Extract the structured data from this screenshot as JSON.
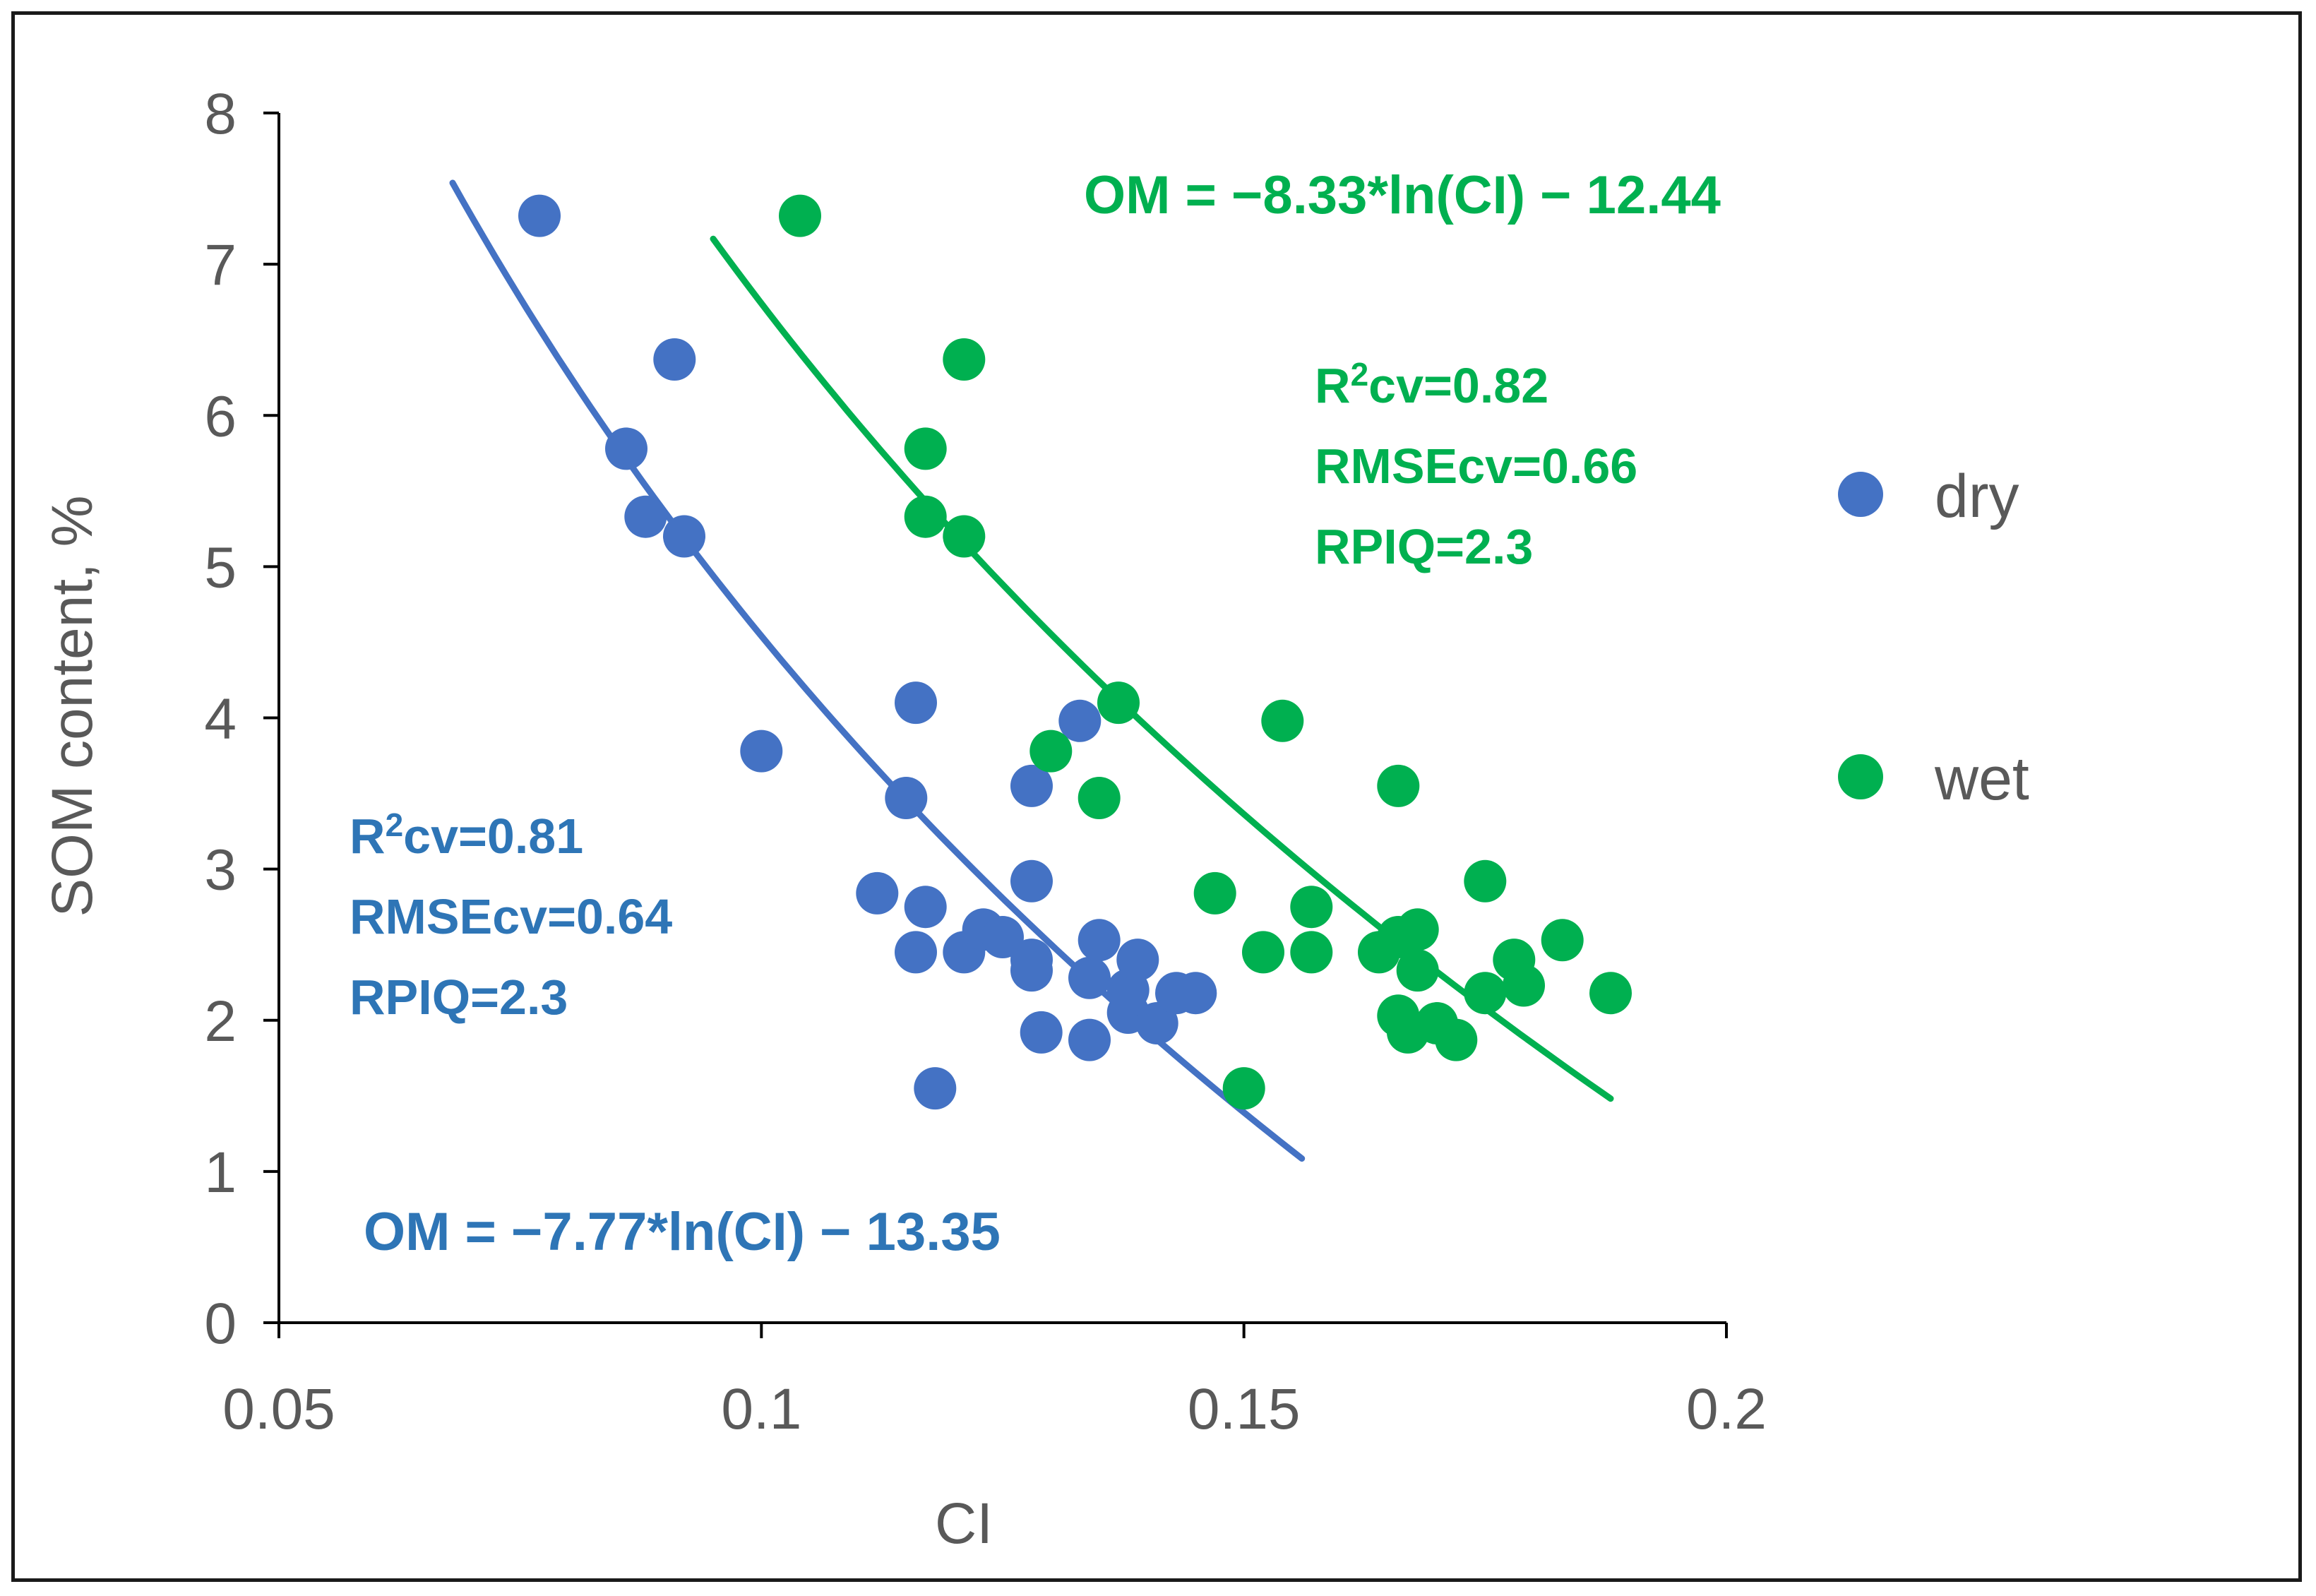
{
  "chart_data": {
    "type": "scatter",
    "title": "",
    "xlabel": "CI",
    "ylabel": "SOM  content, %",
    "xlim": [
      0.05,
      0.2
    ],
    "ylim": [
      0,
      8
    ],
    "xticks": [
      "0.05",
      "0.1",
      "0.15",
      "0.2"
    ],
    "yticks": [
      "0",
      "1",
      "2",
      "3",
      "4",
      "5",
      "6",
      "7",
      "8"
    ],
    "legend": {
      "placement": "right",
      "entries": [
        "dry",
        "wet"
      ]
    },
    "series": [
      {
        "name": "dry",
        "color": "#4472c4",
        "points": [
          [
            0.077,
            7.32
          ],
          [
            0.091,
            6.37
          ],
          [
            0.086,
            5.78
          ],
          [
            0.088,
            5.33
          ],
          [
            0.092,
            5.2
          ],
          [
            0.1,
            3.78
          ],
          [
            0.116,
            4.1
          ],
          [
            0.133,
            3.98
          ],
          [
            0.115,
            3.47
          ],
          [
            0.128,
            3.55
          ],
          [
            0.112,
            2.84
          ],
          [
            0.117,
            2.75
          ],
          [
            0.128,
            2.92
          ],
          [
            0.116,
            2.45
          ],
          [
            0.121,
            2.45
          ],
          [
            0.123,
            2.6
          ],
          [
            0.125,
            2.55
          ],
          [
            0.128,
            2.4
          ],
          [
            0.128,
            2.33
          ],
          [
            0.129,
            1.92
          ],
          [
            0.134,
            1.87
          ],
          [
            0.134,
            2.28
          ],
          [
            0.135,
            2.53
          ],
          [
            0.138,
            2.05
          ],
          [
            0.138,
            2.2
          ],
          [
            0.139,
            2.4
          ],
          [
            0.141,
            1.98
          ],
          [
            0.143,
            2.18
          ],
          [
            0.145,
            2.18
          ],
          [
            0.118,
            1.55
          ]
        ],
        "fit": {
          "a": -7.77,
          "b": -13.35,
          "x_range": [
            0.068,
            0.156
          ]
        },
        "equation": "OM = −7.77*ln(CI) − 13.35",
        "stats": {
          "r2_prefix": "R",
          "r2_sup": "2",
          "r2_rest": "cv=0.81",
          "rmse": "RMSEcv=0.64",
          "rpiq": "RPIQ=2.3"
        }
      },
      {
        "name": "wet",
        "color": "#00b050",
        "points": [
          [
            0.104,
            7.32
          ],
          [
            0.121,
            6.37
          ],
          [
            0.117,
            5.78
          ],
          [
            0.117,
            5.33
          ],
          [
            0.121,
            5.2
          ],
          [
            0.13,
            3.78
          ],
          [
            0.137,
            4.1
          ],
          [
            0.154,
            3.98
          ],
          [
            0.135,
            3.47
          ],
          [
            0.166,
            3.55
          ],
          [
            0.147,
            2.84
          ],
          [
            0.157,
            2.75
          ],
          [
            0.175,
            2.92
          ],
          [
            0.152,
            2.45
          ],
          [
            0.157,
            2.45
          ],
          [
            0.164,
            2.45
          ],
          [
            0.166,
            2.55
          ],
          [
            0.168,
            2.6
          ],
          [
            0.168,
            2.33
          ],
          [
            0.166,
            2.03
          ],
          [
            0.167,
            1.92
          ],
          [
            0.17,
            1.98
          ],
          [
            0.172,
            1.87
          ],
          [
            0.175,
            2.18
          ],
          [
            0.178,
            2.4
          ],
          [
            0.179,
            2.23
          ],
          [
            0.183,
            2.53
          ],
          [
            0.188,
            2.18
          ],
          [
            0.15,
            1.55
          ]
        ],
        "fit": {
          "a": -8.33,
          "b": -12.44,
          "x_range": [
            0.095,
            0.188
          ]
        },
        "equation": "OM = −8.33*ln(CI) − 12.44",
        "stats": {
          "r2_prefix": "R",
          "r2_sup": "2",
          "r2_rest": "cv=0.82",
          "rmse": "RMSEcv=0.66",
          "rpiq": "RPIQ=2.3"
        }
      }
    ]
  }
}
